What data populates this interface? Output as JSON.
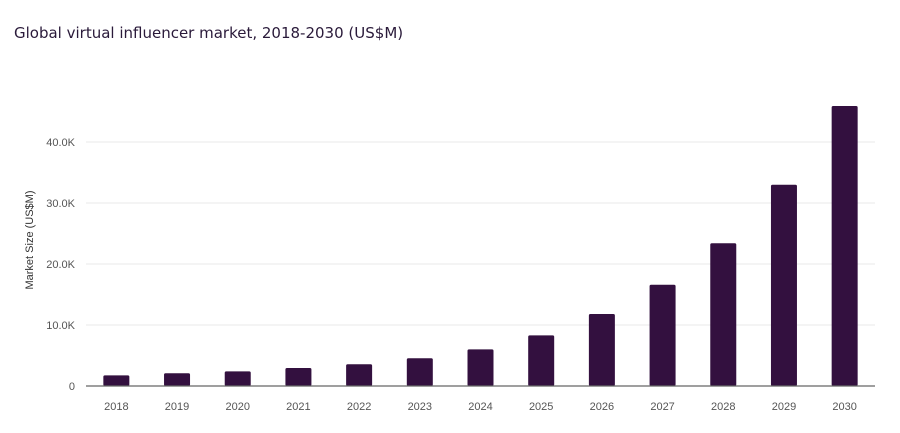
{
  "chart_data": {
    "type": "bar",
    "title": "Global virtual influencer market, 2018-2030 (US$M)",
    "xlabel": "",
    "ylabel": "Market Size (US$M)",
    "categories": [
      "2018",
      "2019",
      "2020",
      "2021",
      "2022",
      "2023",
      "2024",
      "2025",
      "2026",
      "2027",
      "2028",
      "2029",
      "2030"
    ],
    "values": [
      1750,
      2080,
      2400,
      2950,
      3560,
      4540,
      6000,
      8300,
      11800,
      16600,
      23400,
      33000,
      45900
    ],
    "ylim": [
      0,
      46000
    ],
    "yticks": [
      0,
      10000,
      20000,
      30000,
      40000
    ],
    "ytick_labels": [
      "0",
      "10.0K",
      "20.0K",
      "30.0K",
      "40.0K"
    ],
    "grid": true,
    "bar_color": "#33103f"
  }
}
